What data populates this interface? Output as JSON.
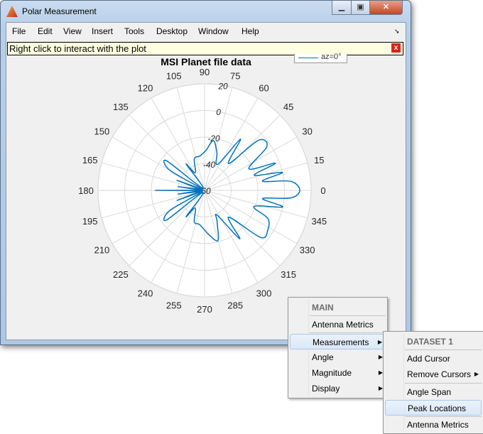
{
  "window": {
    "title": "Polar Measurement",
    "controls": [
      "minimize",
      "maximize",
      "close"
    ]
  },
  "menubar": {
    "items": [
      "File",
      "Edit",
      "View",
      "Insert",
      "Tools",
      "Desktop",
      "Window",
      "Help"
    ]
  },
  "info_bar": {
    "text": "Right click to interact with the plot",
    "close_label": "x"
  },
  "legend": {
    "entries": [
      "az=0°"
    ]
  },
  "context_menu": {
    "header": "MAIN",
    "items": [
      "Antenna Metrics",
      "Measurements",
      "Angle",
      "Magnitude",
      "Display"
    ],
    "selected": "Measurements"
  },
  "submenu": {
    "header": "DATASET 1",
    "items": [
      "Add Cursor",
      "Remove Cursors",
      "Angle Span",
      "Peak Locations",
      "Antenna Metrics"
    ],
    "selected": "Peak Locations"
  },
  "chart_data": {
    "type": "polar-line",
    "title": "MSI Planet file data",
    "series": [
      {
        "name": "az=0°",
        "color": "#0072bd",
        "points": [
          [
            0,
            11.5
          ],
          [
            6,
            5
          ],
          [
            9,
            -16
          ],
          [
            13,
            0
          ],
          [
            17,
            -21
          ],
          [
            21,
            -3
          ],
          [
            26,
            -23
          ],
          [
            35,
            -3
          ],
          [
            43,
            -5
          ],
          [
            48,
            -33
          ],
          [
            55,
            -13
          ],
          [
            63,
            -38
          ],
          [
            72,
            -30
          ],
          [
            80,
            -22
          ],
          [
            88,
            -30
          ],
          [
            98,
            -34
          ],
          [
            108,
            -35
          ],
          [
            118,
            -45
          ],
          [
            125,
            -36
          ],
          [
            130,
            -58
          ],
          [
            142,
            -24
          ],
          [
            150,
            -30
          ],
          [
            155,
            -58
          ],
          [
            160,
            -38
          ],
          [
            166,
            -58
          ],
          [
            172,
            -40
          ],
          [
            176,
            -58
          ],
          [
            180,
            -23
          ],
          [
            184,
            -58
          ],
          [
            188,
            -40
          ],
          [
            194,
            -58
          ],
          [
            200,
            -38
          ],
          [
            205,
            -58
          ],
          [
            210,
            -30
          ],
          [
            218,
            -24
          ],
          [
            230,
            -58
          ],
          [
            235,
            -36
          ],
          [
            242,
            -45
          ],
          [
            252,
            -35
          ],
          [
            262,
            -34
          ],
          [
            275,
            -27
          ],
          [
            285,
            -21
          ],
          [
            292,
            -35
          ],
          [
            297,
            -39
          ],
          [
            306,
            -15
          ],
          [
            312,
            -33
          ],
          [
            320,
            -5
          ],
          [
            328,
            -4
          ],
          [
            336,
            -8
          ],
          [
            342,
            -21
          ],
          [
            348,
            0
          ],
          [
            352,
            -16
          ],
          [
            355,
            5
          ]
        ]
      }
    ],
    "angle_ticks": [
      "0",
      "15",
      "30",
      "45",
      "60",
      "75",
      "90",
      "105",
      "120",
      "135",
      "150",
      "165",
      "180",
      "195",
      "210",
      "225",
      "240",
      "255",
      "270",
      "285",
      "300",
      "315",
      "330",
      "345"
    ],
    "magnitude_ticks": [
      "-60",
      "-40",
      "-20",
      "0",
      "20"
    ],
    "rlim": [
      -60,
      20
    ],
    "grid": true
  }
}
